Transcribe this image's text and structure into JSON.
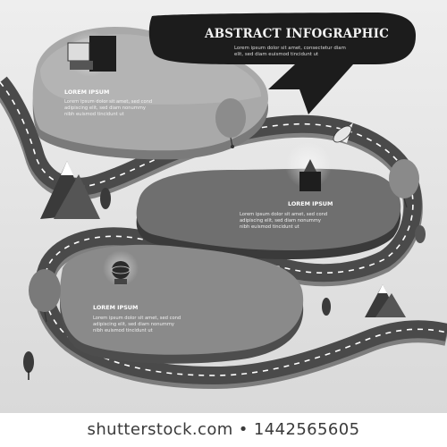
{
  "title": "ABSTRACT INFOGRAPHIC",
  "subtitle_lines": [
    "Lorem ipsum dolor sit amet, consectetur diam",
    "elit, sed diam euismod tincidunt ut"
  ],
  "steps": [
    {
      "label": "LOREM IPSUM",
      "icon": "computer-monitor-icon",
      "lines": [
        "Lorem ipsum dolor sit amet, sed cond",
        "adipiscing elit, sed diam nonummy",
        "nibh euismod tincidunt ut"
      ]
    },
    {
      "label": "LOREM IPSUM",
      "icon": "rocket-icon",
      "lines": [
        "Lorem ipsum dolor sit amet, sed cond",
        "adipiscing elit, sed diam nonummy",
        "nibh euismod tincidunt ut"
      ]
    },
    {
      "label": "LOREM IPSUM",
      "icon": "globe-icon",
      "lines": [
        "Lorem ipsum dolor sit amet, sed cond",
        "adipiscing elit, sed diam nonummy",
        "nibh euismod tincidunt ut"
      ]
    }
  ],
  "watermark": "shutterstock.com • 1442565605",
  "colors": {
    "background": "#e6e6e6",
    "road": "#4a4a4a",
    "road_lines": "#ffffff",
    "banner": "#1c1c1c",
    "platform_light": "#a9a9a9",
    "platform_dark": "#6f6f6f"
  }
}
